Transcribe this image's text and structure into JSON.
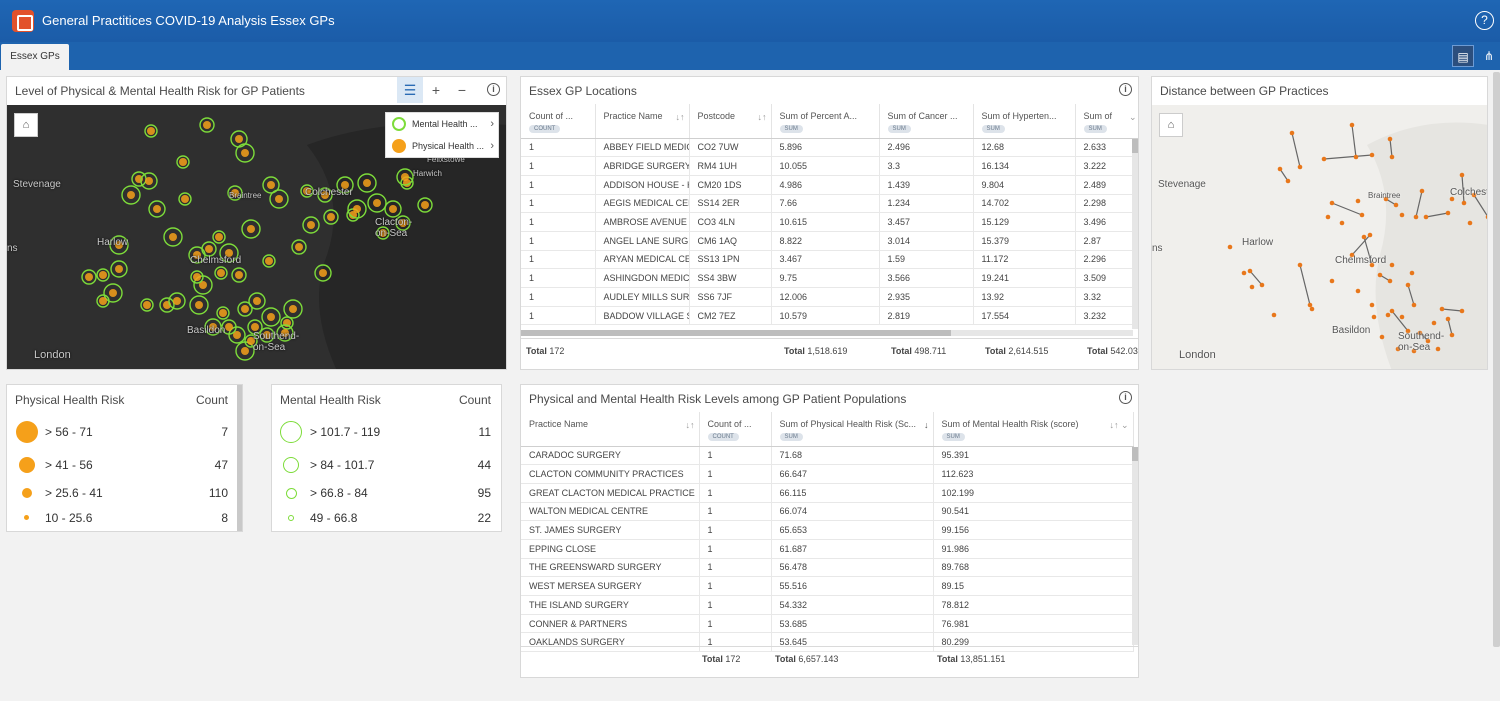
{
  "header": {
    "title": "General Practitices COVID-19 Analysis Essex GPs",
    "help_icon": "question-circle-icon"
  },
  "tabs": [
    {
      "label": "Essex GPs"
    }
  ],
  "risk_map": {
    "title": "Level of Physical & Mental Health Risk for GP Patients",
    "labels": {
      "stevenage": "Stevenage",
      "harlow": "Harlow",
      "chelmsford": "Chelmsford",
      "braintree": "Braintree",
      "colchester": "Colchester",
      "clacton": "Clacton-on-Sea",
      "felixstowe": "Felixstowe",
      "harwich": "Harwich",
      "basildon": "Basildon",
      "southend": "Southend-on-Sea",
      "london": "London",
      "ns": "ns"
    },
    "legend": [
      {
        "label": "Mental Health ..."
      },
      {
        "label": "Physical Health ..."
      }
    ],
    "colors": {
      "physical": "#f5a01a",
      "mental": "#7ddc3a"
    }
  },
  "physical_legend": {
    "title": "Physical Health Risk",
    "count_header": "Count",
    "rows": [
      {
        "label": "> 56 - 71",
        "count": "7"
      },
      {
        "label": "> 41 - 56",
        "count": "47"
      },
      {
        "label": "> 25.6 - 41",
        "count": "110"
      },
      {
        "label": "10 - 25.6",
        "count": "8"
      }
    ]
  },
  "mental_legend": {
    "title": "Mental Health Risk",
    "count_header": "Count",
    "rows": [
      {
        "label": "> 101.7 - 119",
        "count": "11"
      },
      {
        "label": "> 84 - 101.7",
        "count": "44"
      },
      {
        "label": "> 66.8 - 84",
        "count": "95"
      },
      {
        "label": "49 - 66.8",
        "count": "22"
      }
    ]
  },
  "locations": {
    "title": "Essex GP Locations",
    "columns": [
      {
        "label": "Count of ...",
        "chip": "COUNT"
      },
      {
        "label": "Practice Name",
        "chip": ""
      },
      {
        "label": "Postcode",
        "chip": ""
      },
      {
        "label": "Sum of Percent A...",
        "chip": "SUM"
      },
      {
        "label": "Sum of Cancer ...",
        "chip": "SUM"
      },
      {
        "label": "Sum of Hyperten...",
        "chip": "SUM"
      },
      {
        "label": "Sum of",
        "chip": "SUM"
      }
    ],
    "rows": [
      [
        "1",
        "ABBEY FIELD MEDICAL",
        "CO2 7UW",
        "5.896",
        "2.496",
        "12.68",
        "2.633"
      ],
      [
        "1",
        "ABRIDGE SURGERY",
        "RM4 1UH",
        "10.055",
        "3.3",
        "16.134",
        "3.222"
      ],
      [
        "1",
        "ADDISON HOUSE - HA",
        "CM20 1DS",
        "4.986",
        "1.439",
        "9.804",
        "2.489"
      ],
      [
        "1",
        "AEGIS MEDICAL CENT",
        "SS14 2ER",
        "7.66",
        "1.234",
        "14.702",
        "2.298"
      ],
      [
        "1",
        "AMBROSE AVENUE GR",
        "CO3 4LN",
        "10.615",
        "3.457",
        "15.129",
        "3.496"
      ],
      [
        "1",
        "ANGEL LANE SURGERY",
        "CM6 1AQ",
        "8.822",
        "3.014",
        "15.379",
        "2.87"
      ],
      [
        "1",
        "ARYAN MEDICAL CENT",
        "SS13 1PN",
        "3.467",
        "1.59",
        "11.172",
        "2.296"
      ],
      [
        "1",
        "ASHINGDON MEDICAL",
        "SS4 3BW",
        "9.75",
        "3.566",
        "19.241",
        "3.509"
      ],
      [
        "1",
        "AUDLEY MILLS SURGER",
        "SS6 7JF",
        "12.006",
        "2.935",
        "13.92",
        "3.32"
      ],
      [
        "1",
        "BADDOW VILLAGE SUI",
        "CM2 7EZ",
        "10.579",
        "2.819",
        "17.554",
        "3.232"
      ]
    ],
    "totals": {
      "label": "Total",
      "count": "172",
      "percent": "1,518.619",
      "cancer": "498.711",
      "hyper": "2,614.515",
      "last": "542.03"
    }
  },
  "distance_map": {
    "title": "Distance between GP Practices",
    "labels": {
      "stevenage": "Stevenage",
      "harlow": "Harlow",
      "chelmsford": "Chelmsford",
      "braintree": "Braintree",
      "colchester": "Colchester",
      "basildon": "Basildon",
      "southend": "Southend-on-Sea",
      "london": "London",
      "ns": "ns"
    }
  },
  "risk_table": {
    "title": "Physical and Mental Health Risk Levels among GP Patient Populations",
    "columns": [
      {
        "label": "Practice Name",
        "chip": ""
      },
      {
        "label": "Count of ...",
        "chip": "COUNT"
      },
      {
        "label": "Sum of Physical Health Risk (Sc...",
        "chip": "SUM"
      },
      {
        "label": "Sum of Mental Health Risk (score)",
        "chip": "SUM"
      }
    ],
    "rows": [
      [
        "CARADOC SURGERY",
        "1",
        "71.68",
        "95.391"
      ],
      [
        "CLACTON COMMUNITY PRACTICES",
        "1",
        "66.647",
        "112.623"
      ],
      [
        "GREAT CLACTON MEDICAL PRACTICE",
        "1",
        "66.115",
        "102.199"
      ],
      [
        "WALTON MEDICAL CENTRE",
        "1",
        "66.074",
        "90.541"
      ],
      [
        "ST. JAMES SURGERY",
        "1",
        "65.653",
        "99.156"
      ],
      [
        "EPPING CLOSE",
        "1",
        "61.687",
        "91.986"
      ],
      [
        "THE GREENSWARD SURGERY",
        "1",
        "56.478",
        "89.768"
      ],
      [
        "WEST MERSEA SURGERY",
        "1",
        "55.516",
        "89.15"
      ],
      [
        "THE ISLAND SURGERY",
        "1",
        "54.332",
        "78.812"
      ],
      [
        "CONNER & PARTNERS",
        "1",
        "53.685",
        "76.981"
      ],
      [
        "OAKLANDS SURGERY",
        "1",
        "53.645",
        "80.299"
      ]
    ],
    "totals": {
      "label": "Total",
      "count": "172",
      "physical": "6,657.143",
      "mental": "13,851.151"
    }
  }
}
